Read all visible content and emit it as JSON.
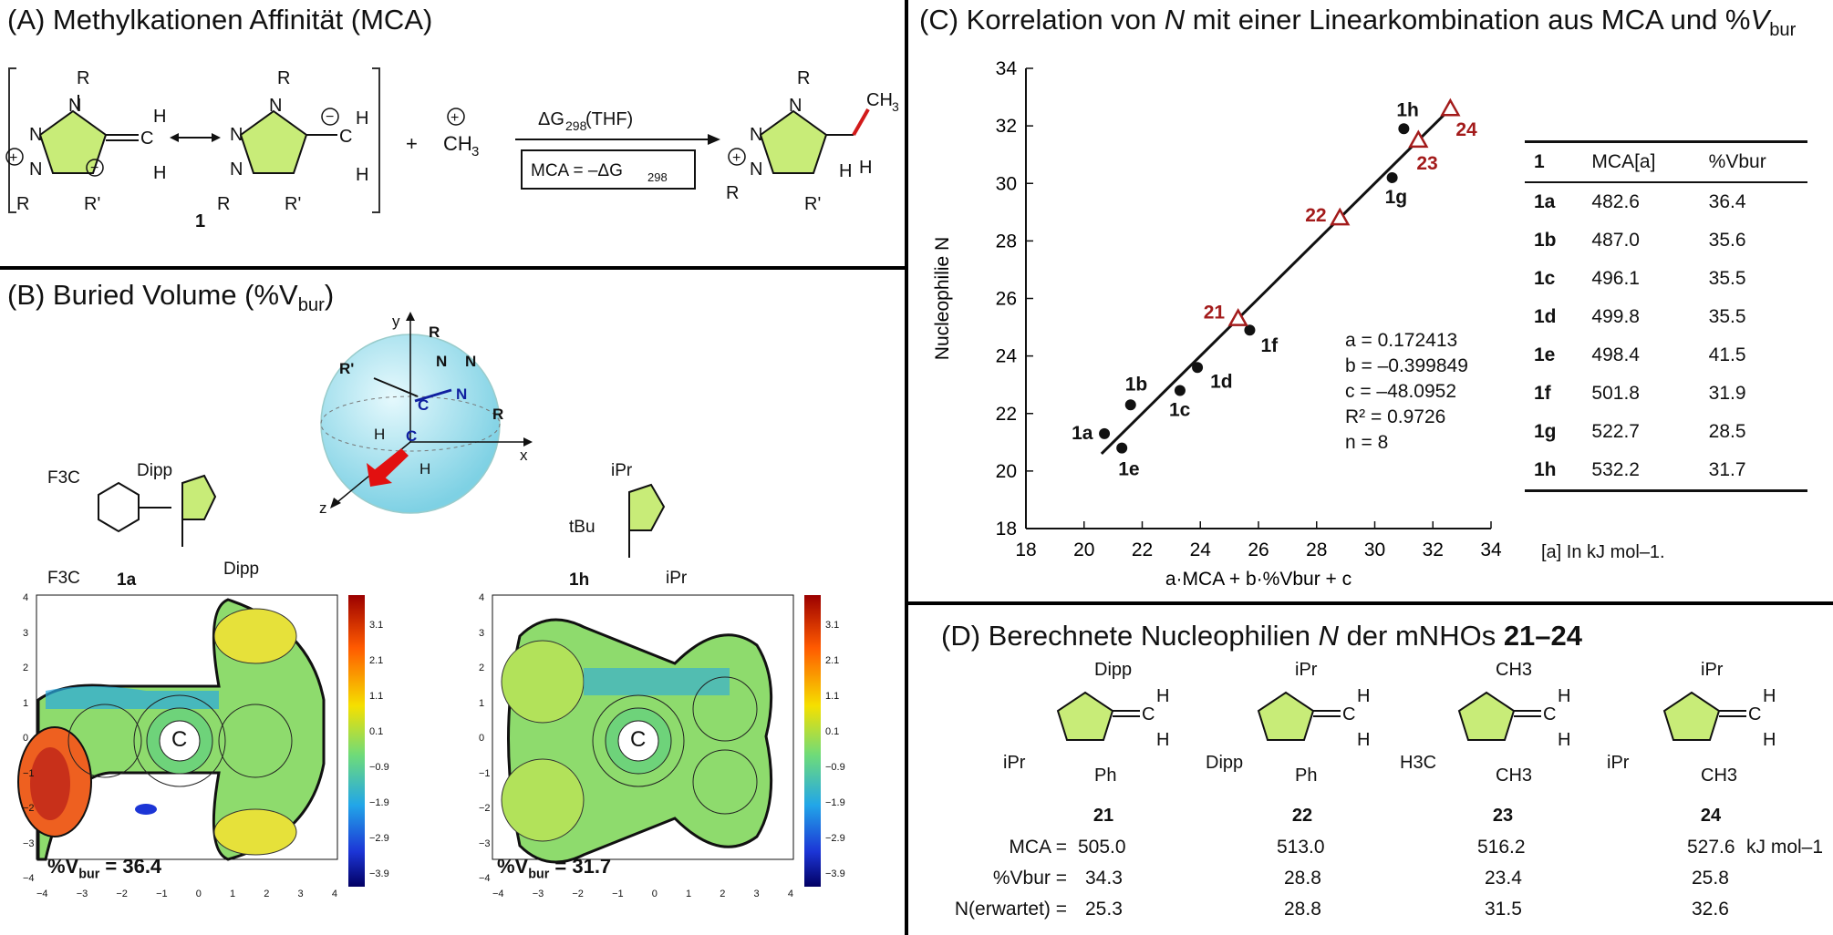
{
  "panel_a": {
    "title": "(A) Methylkationen Affinität (MCA)",
    "compound_label": "1",
    "plus": "+",
    "methyl": "CH",
    "methyl_sub": "3",
    "reaction_top": "ΔG298(THF)",
    "reaction_box": "MCA = –ΔG298",
    "sub_R": "R",
    "sub_R2": "R'",
    "H": "H",
    "N": "N"
  },
  "panel_b": {
    "title_prefix": "(B) Buried Volume (%V",
    "title_sub": "bur",
    "title_suffix": ")",
    "mol_1a": {
      "label": "1a",
      "sub1": "F3C",
      "sub2": "F3C",
      "sub3": "Dipp",
      "sub4": "Dipp"
    },
    "mol_1h": {
      "label": "1h",
      "sub1": "iPr",
      "sub2": "tBu",
      "sub3": "iPr"
    },
    "sphere": {
      "y": "y",
      "x": "x",
      "z": "z",
      "R1": "R",
      "R2": "R",
      "R3": "R'",
      "N1": "N",
      "N2": "N",
      "N3": "N",
      "C1": "C",
      "C2": "C",
      "H1": "H",
      "H2": "H"
    },
    "map_left": {
      "vbur_text": "%V",
      "vbur_sub": "bur",
      "vbur_value": " = 36.4",
      "center": "C",
      "xticks": [
        "−4",
        "−3",
        "−2",
        "−1",
        "0",
        "1",
        "2",
        "3",
        "4"
      ],
      "yticks": [
        "4",
        "3",
        "2",
        "1",
        "0",
        "−1",
        "−2",
        "−3",
        "−4"
      ]
    },
    "map_right": {
      "vbur_text": "%V",
      "vbur_sub": "bur",
      "vbur_value": " = 31.7",
      "center": "C",
      "xticks": [
        "−4",
        "−3",
        "−2",
        "−1",
        "0",
        "1",
        "2",
        "3",
        "4"
      ],
      "yticks": [
        "4",
        "3",
        "2",
        "1",
        "0",
        "−1",
        "−2",
        "−3",
        "−4"
      ]
    },
    "colorbar_ticks": [
      "3.1",
      "2.1",
      "1.1",
      "0.1",
      "−0.9",
      "−1.9",
      "−2.9",
      "−3.9"
    ]
  },
  "panel_c": {
    "title_prefix": "(C) Korrelation von ",
    "title_italic": "N",
    "title_mid": " mit einer Linearkombination aus MCA und %",
    "title_V": "V",
    "title_sub": "bur",
    "stats": {
      "a": "a = 0.172413",
      "b": "b = –0.399849",
      "c": "c = –48.0952",
      "r2": "R² = 0.9726",
      "n": "n = 8"
    },
    "table": {
      "header": [
        "1",
        "MCA[a]",
        "%Vbur"
      ],
      "rows": [
        [
          "1a",
          "482.6",
          "36.4"
        ],
        [
          "1b",
          "487.0",
          "35.6"
        ],
        [
          "1c",
          "496.1",
          "35.5"
        ],
        [
          "1d",
          "499.8",
          "35.5"
        ],
        [
          "1e",
          "498.4",
          "41.5"
        ],
        [
          "1f",
          "501.8",
          "31.9"
        ],
        [
          "1g",
          "522.7",
          "28.5"
        ],
        [
          "1h",
          "532.2",
          "31.7"
        ]
      ],
      "footnote": "[a] In kJ mol–1."
    }
  },
  "chart_data": {
    "type": "scatter",
    "xlabel": "a·MCA + b·%Vbur + c",
    "ylabel": "Nucleophilie N",
    "xlim": [
      18,
      34
    ],
    "ylim": [
      18,
      34
    ],
    "xticks": [
      18,
      20,
      22,
      24,
      26,
      28,
      30,
      32,
      34
    ],
    "yticks": [
      18,
      20,
      22,
      24,
      26,
      28,
      30,
      32,
      34
    ],
    "series": [
      {
        "marker": "circle",
        "color": "#111111",
        "points": [
          {
            "label": "1a",
            "x": 20.7,
            "y": 21.3
          },
          {
            "label": "1b",
            "x": 21.6,
            "y": 22.3
          },
          {
            "label": "1c",
            "x": 23.3,
            "y": 22.8
          },
          {
            "label": "1d",
            "x": 23.9,
            "y": 23.6
          },
          {
            "label": "1e",
            "x": 21.3,
            "y": 20.8
          },
          {
            "label": "1f",
            "x": 25.7,
            "y": 24.9
          },
          {
            "label": "1g",
            "x": 30.6,
            "y": 30.2
          },
          {
            "label": "1h",
            "x": 31.0,
            "y": 31.9
          }
        ]
      },
      {
        "marker": "triangle",
        "color": "#a31b1b",
        "points": [
          {
            "label": "21",
            "x": 25.3,
            "y": 25.3
          },
          {
            "label": "22",
            "x": 28.8,
            "y": 28.8
          },
          {
            "label": "23",
            "x": 31.5,
            "y": 31.5
          },
          {
            "label": "24",
            "x": 32.6,
            "y": 32.6
          }
        ]
      }
    ],
    "fit_line": {
      "x": [
        20.6,
        32.6
      ],
      "y": [
        20.6,
        32.6
      ]
    }
  },
  "panel_d": {
    "title_prefix": "(D) Berechnete Nucleophilien ",
    "title_italic": "N",
    "title_mid": " der mNHOs ",
    "title_bold": "21–24",
    "compounds": [
      {
        "label": "21",
        "sub_top": "Dipp",
        "sub_left": "iPr",
        "sub_bottom": "Ph",
        "mca": "505.0",
        "vbur": "34.3",
        "n": "25.3"
      },
      {
        "label": "22",
        "sub_top": "iPr",
        "sub_left": "Dipp",
        "sub_bottom": "Ph",
        "mca": "513.0",
        "vbur": "28.8",
        "n": "28.8"
      },
      {
        "label": "23",
        "sub_top": "CH3",
        "sub_left": "H3C",
        "sub_bottom": "CH3",
        "mca": "516.2",
        "vbur": "23.4",
        "n": "31.5"
      },
      {
        "label": "24",
        "sub_top": "iPr",
        "sub_left": "iPr",
        "sub_bottom": "CH3",
        "mca": "527.6",
        "vbur": "25.8",
        "n": "32.6"
      }
    ],
    "row_labels": {
      "mca": "MCA =",
      "vbur": "%Vbur =",
      "n": "N(erwartet) ="
    },
    "unit": "kJ mol–1"
  },
  "colors": {
    "ring_fill": "#c8ec78",
    "red": "#a31b1b",
    "blue": "#1020a0",
    "sphere": "#a8e4f0"
  }
}
